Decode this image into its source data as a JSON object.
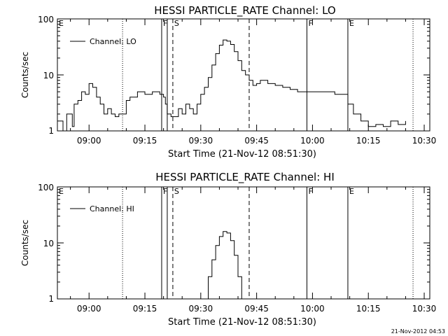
{
  "footer_timestamp": "21-Nov-2012 04:53",
  "chart_data": [
    {
      "type": "line",
      "title": "HESSI PARTICLE_RATE Channel: LO",
      "xlabel": "Start Time (21-Nov-12 08:51:30)",
      "ylabel": "Counts/sec",
      "yscale": "log",
      "ylim": [
        1,
        100
      ],
      "xlim": [
        "08:51:30",
        "10:31:30"
      ],
      "x_ticks": [
        "09:00",
        "09:15",
        "09:30",
        "09:45",
        "10:00",
        "10:15",
        "10:30"
      ],
      "y_ticks": [
        "1",
        "10",
        "100"
      ],
      "legend": {
        "placement": "top-left",
        "entries": [
          "Channel: LO"
        ]
      },
      "markers": [
        {
          "label": "E",
          "time": "08:51:30",
          "style": "solid"
        },
        {
          "label": "",
          "time": "09:09:00",
          "style": "dotted"
        },
        {
          "label": "F",
          "time": "09:19:30",
          "style": "solid"
        },
        {
          "label": "",
          "time": "09:21:00",
          "style": "solid"
        },
        {
          "label": "S",
          "time": "09:22:30",
          "style": "dashed"
        },
        {
          "label": "",
          "time": "09:43:00",
          "style": "dashed"
        },
        {
          "label": "F",
          "time": "09:58:30",
          "style": "solid"
        },
        {
          "label": "E",
          "time": "10:09:30",
          "style": "solid"
        },
        {
          "label": "",
          "time": "10:27:00",
          "style": "dotted"
        }
      ],
      "series": [
        {
          "name": "Channel: LO",
          "x": [
            "08:51:30",
            "08:53:00",
            "08:54:00",
            "08:55:30",
            "08:56:00",
            "08:57:00",
            "08:58:00",
            "08:59:00",
            "09:00:00",
            "09:01:00",
            "09:02:00",
            "09:03:00",
            "09:04:00",
            "09:05:00",
            "09:06:00",
            "09:07:00",
            "09:08:00",
            "09:09:00",
            "09:10:00",
            "09:11:00",
            "09:13:00",
            "09:15:00",
            "09:17:00",
            "09:19:00",
            "09:20:00",
            "09:20:30",
            "09:21:00",
            "09:22:00",
            "09:23:00",
            "09:24:00",
            "09:25:00",
            "09:26:00",
            "09:27:00",
            "09:28:00",
            "09:29:00",
            "09:30:00",
            "09:31:00",
            "09:32:00",
            "09:33:00",
            "09:34:00",
            "09:35:00",
            "09:36:00",
            "09:37:00",
            "09:38:00",
            "09:39:00",
            "09:40:00",
            "09:41:00",
            "09:42:00",
            "09:43:00",
            "09:44:00",
            "09:45:00",
            "09:46:00",
            "09:48:00",
            "09:50:00",
            "09:52:00",
            "09:54:00",
            "09:56:00",
            "09:58:00",
            "10:00:00",
            "10:02:00",
            "10:04:00",
            "10:06:00",
            "10:08:00",
            "10:09:30",
            "10:11:00",
            "10:13:00",
            "10:15:00",
            "10:17:00",
            "10:19:00",
            "10:21:00",
            "10:23:00",
            "10:25:00"
          ],
          "y": [
            1.5,
            1.0,
            2.0,
            1.2,
            3.0,
            3.5,
            5.0,
            4.5,
            7.0,
            6.0,
            4.0,
            3.0,
            2.0,
            2.5,
            2.0,
            1.8,
            2.0,
            2.0,
            3.5,
            4.0,
            5.0,
            4.5,
            5.0,
            4.5,
            4.0,
            3.0,
            2.0,
            1.8,
            1.8,
            2.5,
            2.0,
            3.0,
            2.5,
            2.0,
            3.0,
            4.5,
            6.0,
            9.0,
            15,
            24,
            34,
            42,
            40,
            35,
            26,
            18,
            12,
            10,
            8.0,
            6.5,
            7.0,
            8.0,
            7.0,
            6.5,
            6.0,
            5.5,
            5.0,
            5.0,
            5.0,
            5.0,
            5.0,
            4.5,
            4.5,
            3.0,
            2.0,
            1.5,
            1.2,
            1.3,
            1.2,
            1.5,
            1.3,
            1.5
          ]
        }
      ]
    },
    {
      "type": "line",
      "title": "HESSI PARTICLE_RATE Channel: HI",
      "xlabel": "Start Time (21-Nov-12 08:51:30)",
      "ylabel": "Counts/sec",
      "yscale": "log",
      "ylim": [
        1,
        100
      ],
      "xlim": [
        "08:51:30",
        "10:31:30"
      ],
      "x_ticks": [
        "09:00",
        "09:15",
        "09:30",
        "09:45",
        "10:00",
        "10:15",
        "10:30"
      ],
      "y_ticks": [
        "1",
        "10",
        "100"
      ],
      "legend": {
        "placement": "top-left",
        "entries": [
          "Channel: HI"
        ]
      },
      "markers": [
        {
          "label": "E",
          "time": "08:51:30",
          "style": "solid"
        },
        {
          "label": "",
          "time": "09:09:00",
          "style": "dotted"
        },
        {
          "label": "F",
          "time": "09:19:30",
          "style": "solid"
        },
        {
          "label": "",
          "time": "09:21:00",
          "style": "solid"
        },
        {
          "label": "S",
          "time": "09:22:30",
          "style": "dashed"
        },
        {
          "label": "",
          "time": "09:43:00",
          "style": "dashed"
        },
        {
          "label": "F",
          "time": "09:58:30",
          "style": "solid"
        },
        {
          "label": "E",
          "time": "10:09:30",
          "style": "solid"
        },
        {
          "label": "",
          "time": "10:27:00",
          "style": "dotted"
        }
      ],
      "series": [
        {
          "name": "Channel: HI",
          "x": [
            "09:31:00",
            "09:32:00",
            "09:33:00",
            "09:34:00",
            "09:35:00",
            "09:36:00",
            "09:37:00",
            "09:38:00",
            "09:39:00",
            "09:40:00",
            "09:41:00"
          ],
          "y": [
            1.0,
            2.5,
            5.0,
            9.0,
            13,
            16,
            15,
            11,
            6.0,
            2.5,
            1.0
          ]
        }
      ]
    }
  ]
}
